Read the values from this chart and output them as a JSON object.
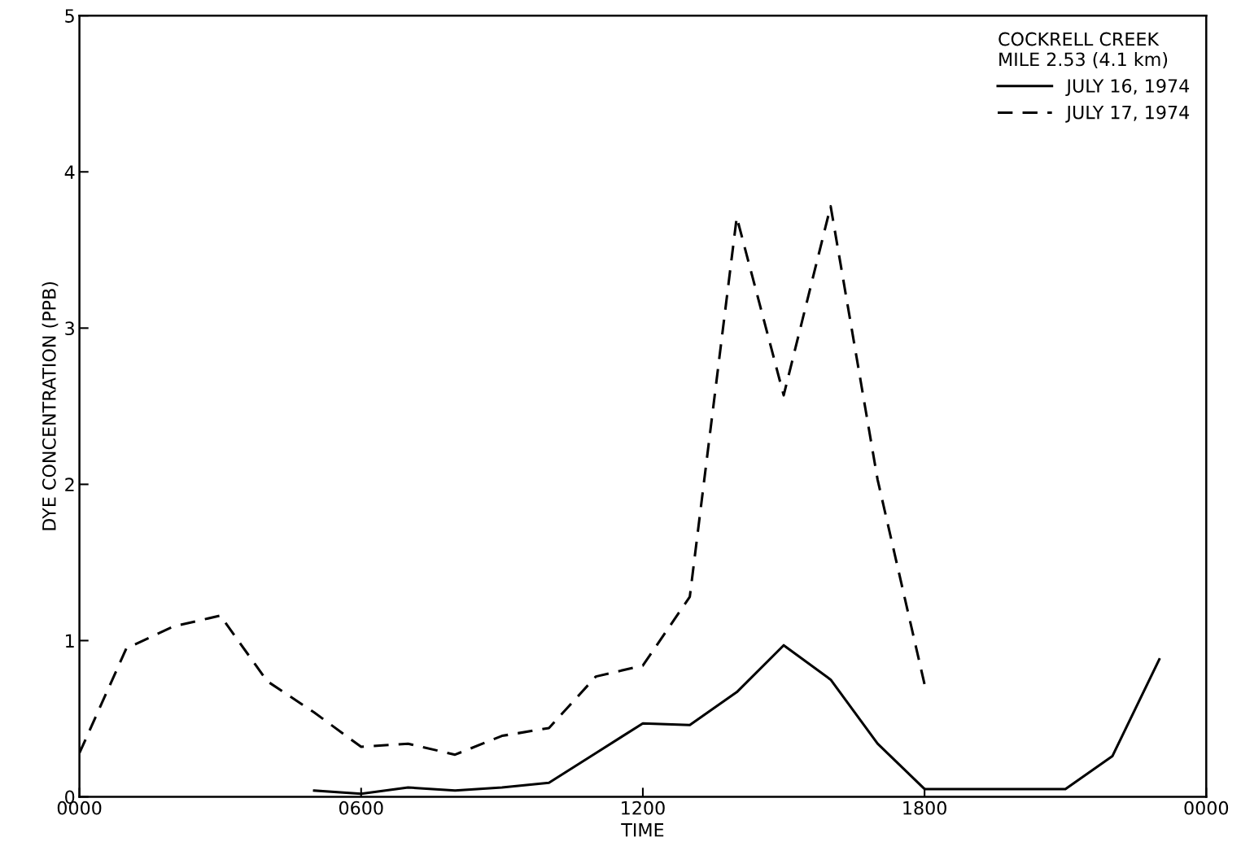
{
  "chart_data": {
    "type": "line",
    "xlabel": "TIME",
    "ylabel": "DYE CONCENTRATION (PPB)",
    "legend_title": "COCKRELL CREEK\nMILE 2.53 (4.1 km)",
    "categories": [
      "0000",
      null,
      null,
      null,
      null,
      null,
      "0600",
      null,
      null,
      null,
      null,
      null,
      "1200",
      null,
      null,
      null,
      null,
      null,
      "1800",
      null,
      null,
      null,
      null,
      null,
      "0000"
    ],
    "ylim": [
      0,
      5
    ],
    "yticks": [
      0,
      1,
      2,
      3,
      4,
      5
    ],
    "grid": false,
    "legend": "top right",
    "marker": "none",
    "series": [
      {
        "name": "JULY 16, 1974",
        "color": "#000000",
        "line_style": "solid",
        "values": [
          null,
          null,
          null,
          null,
          null,
          0.04,
          0.02,
          0.06,
          0.04,
          0.06,
          0.09,
          0.28,
          0.47,
          0.46,
          0.67,
          0.97,
          0.75,
          0.34,
          0.05,
          0.05,
          0.05,
          0.05,
          0.26,
          0.88,
          null
        ]
      },
      {
        "name": "JULY 17, 1974",
        "color": "#000000",
        "line_style": "dashed",
        "values": [
          0.28,
          0.95,
          1.09,
          1.16,
          0.74,
          0.54,
          0.32,
          0.34,
          0.27,
          0.39,
          0.44,
          0.77,
          0.84,
          1.28,
          3.71,
          2.57,
          3.78,
          2.03,
          0.72,
          null,
          null,
          null,
          null,
          null,
          null
        ]
      }
    ]
  }
}
